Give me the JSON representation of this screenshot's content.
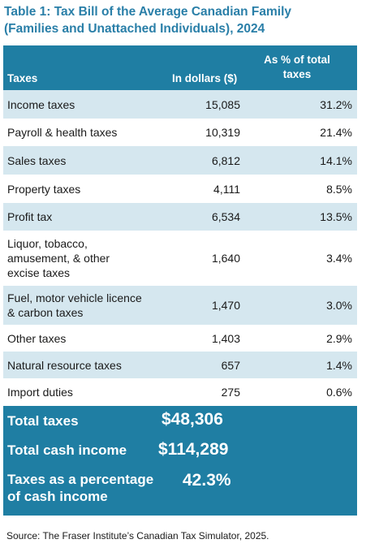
{
  "title": {
    "line1": "Table 1: Tax Bill of the Average Canadian Family",
    "line2": "(Families and Unattached Individuals), 2024"
  },
  "header": {
    "taxes": "Taxes",
    "dollars": "In dollars ($)",
    "pct_line1": "As % of total",
    "pct_line2": "taxes"
  },
  "rows": [
    {
      "label": "Income taxes",
      "dollars": "15,085",
      "pct": "31.2%"
    },
    {
      "label": "Payroll & health taxes",
      "dollars": "10,319",
      "pct": "21.4%"
    },
    {
      "label": "Sales taxes",
      "dollars": "6,812",
      "pct": "14.1%"
    },
    {
      "label": "Property taxes",
      "dollars": "4,111",
      "pct": "8.5%"
    },
    {
      "label": "Profit tax",
      "dollars": "6,534",
      "pct": "13.5%"
    },
    {
      "label_lines": [
        "Liquor, tobacco,",
        "amusement, & other",
        "excise taxes"
      ],
      "dollars": "1,640",
      "pct": "3.4%"
    },
    {
      "label_lines": [
        "Fuel, motor vehicle licence",
        "& carbon taxes"
      ],
      "dollars": "1,470",
      "pct": "3.0%"
    },
    {
      "label": "Other taxes",
      "dollars": "1,403",
      "pct": "2.9%"
    },
    {
      "label": "Natural resource taxes",
      "dollars": "657",
      "pct": "1.4%"
    },
    {
      "label": "Import duties",
      "dollars": "275",
      "pct": "0.6%"
    }
  ],
  "totals": {
    "total_taxes_label": "Total taxes",
    "total_taxes_value": "$48,306",
    "cash_income_label": "Total cash income",
    "cash_income_value": "$114,289",
    "pct_label_line1": "Taxes as a percentage",
    "pct_label_line2": "of cash income",
    "pct_value": "42.3%"
  },
  "source": "Source: The Fraser Institute’s Canadian Tax Simulator, 2025."
}
